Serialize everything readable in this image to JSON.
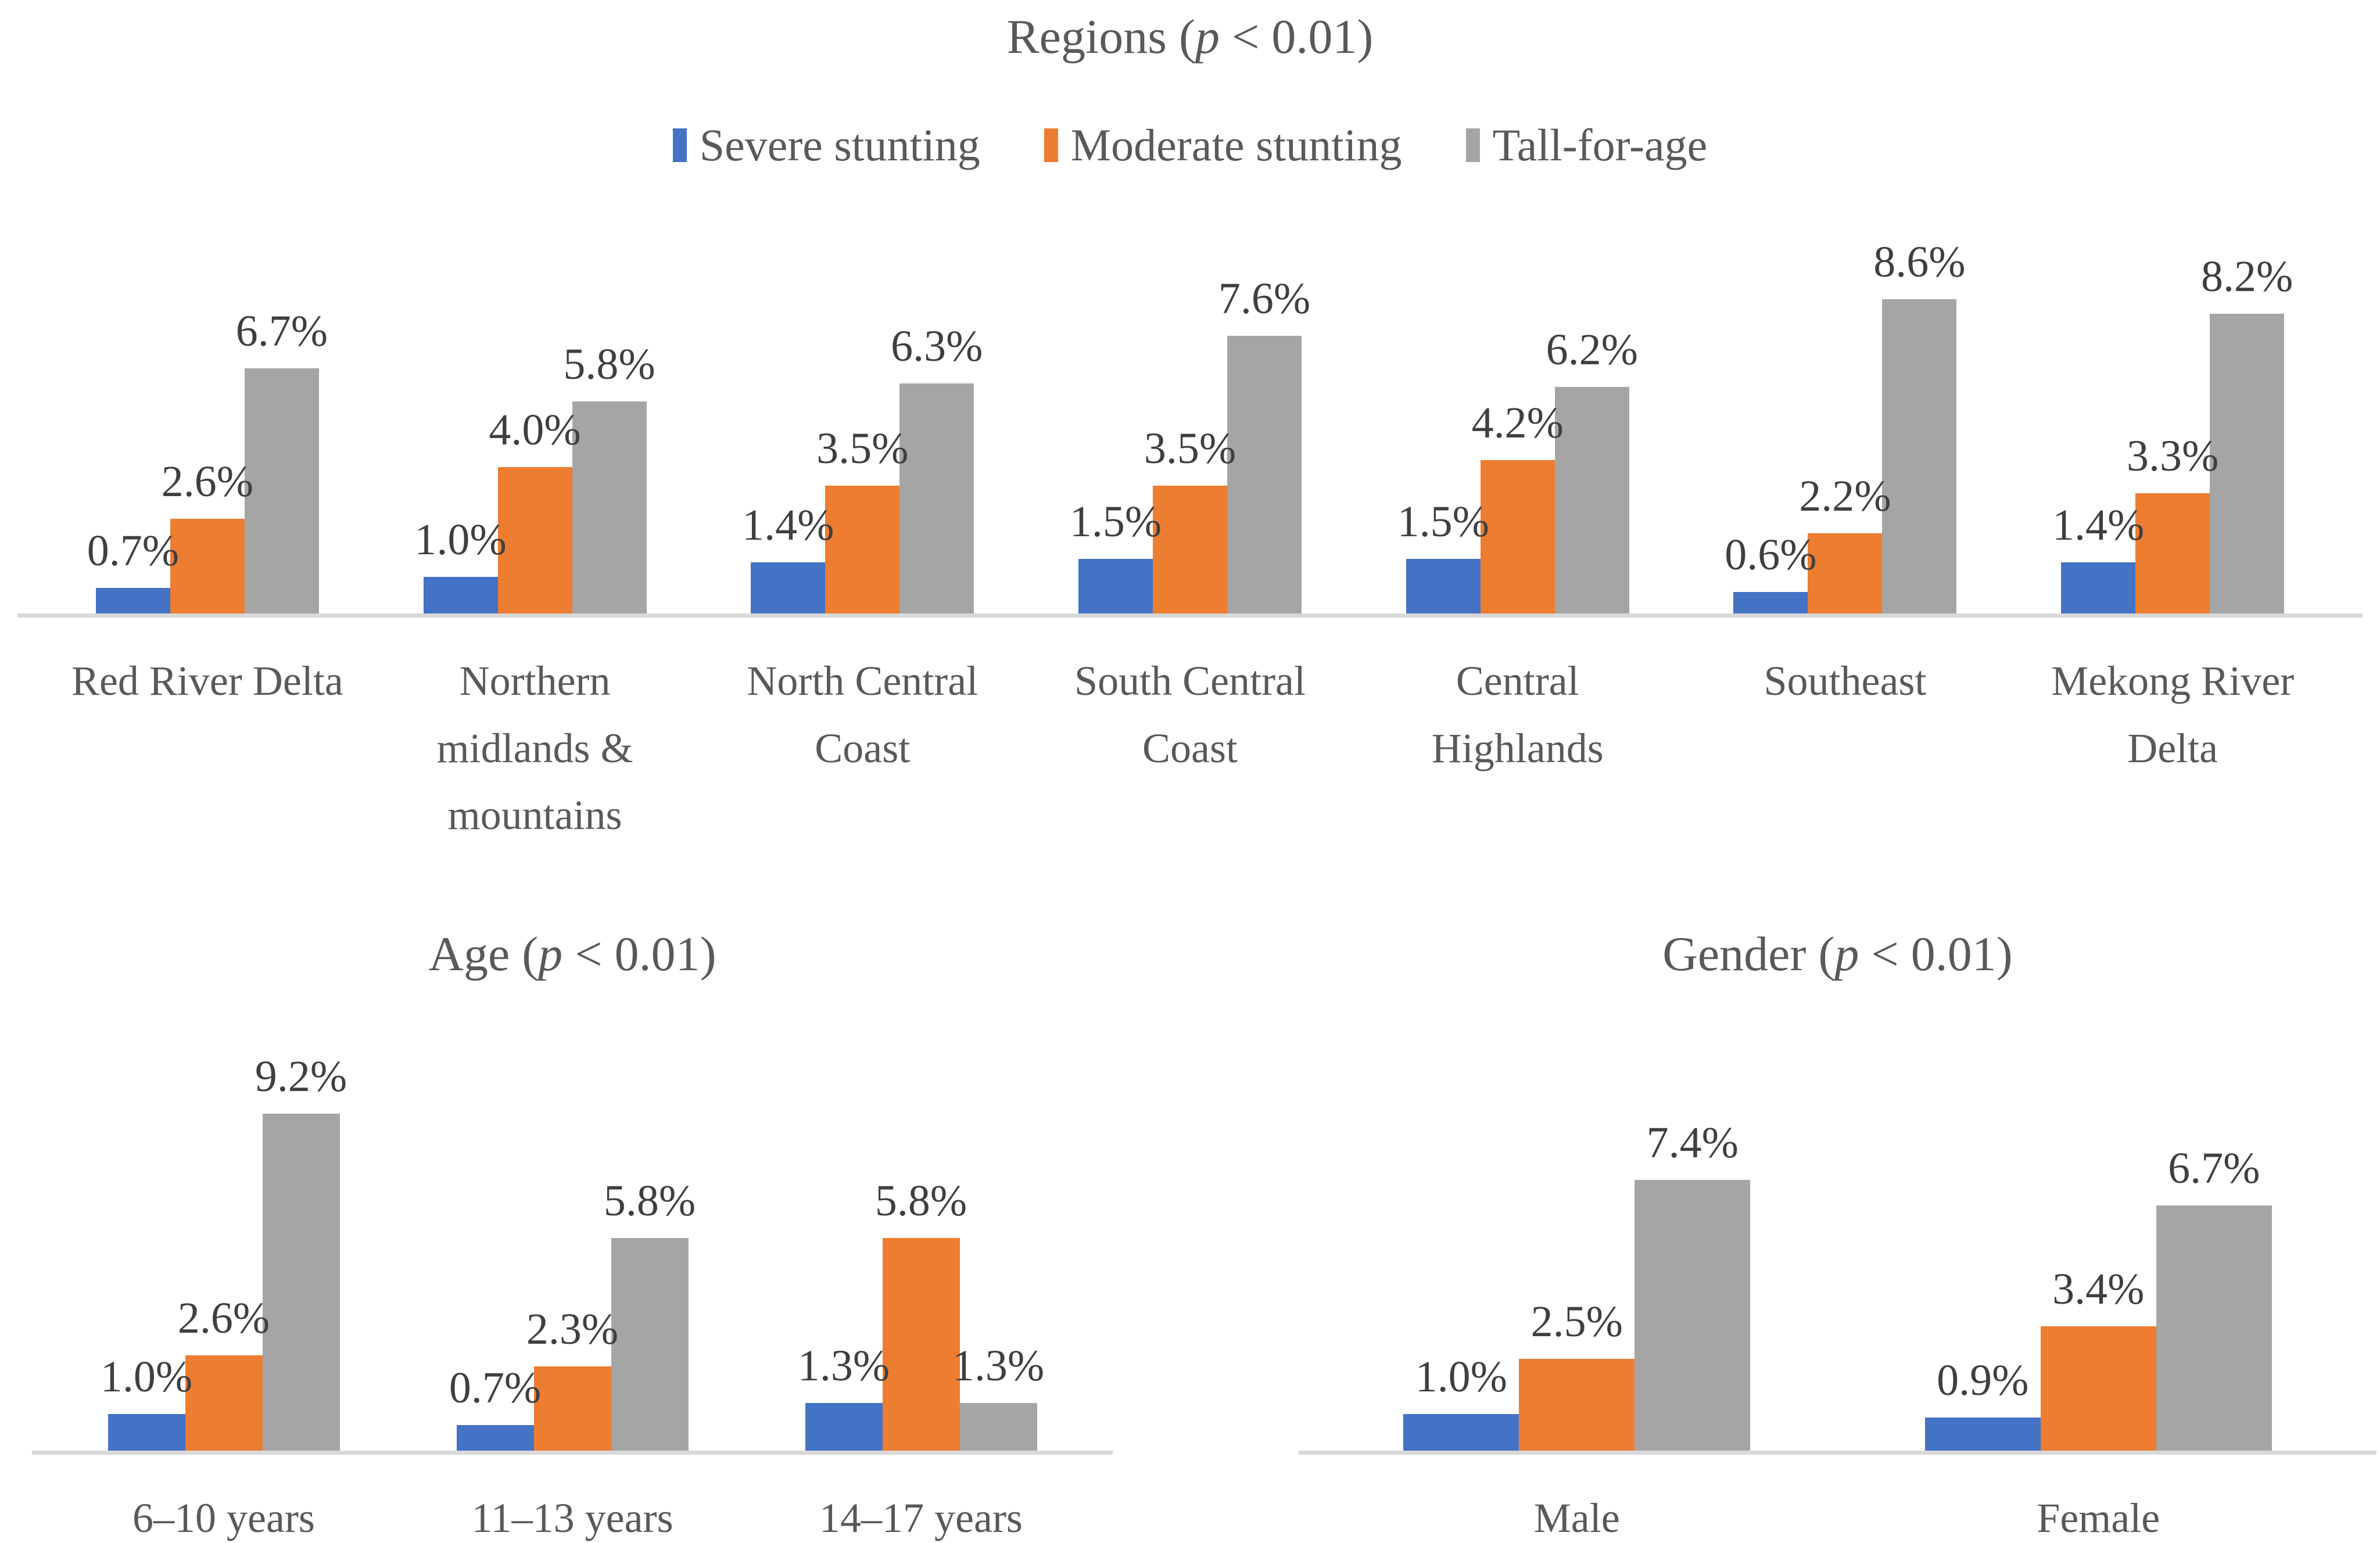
{
  "figure": {
    "background": "#FFFFFF",
    "title_text_color": "#595959",
    "data_label_color": "#3F3F3F",
    "axis_line_color": "#D9D9D9"
  },
  "legend": {
    "position": "top",
    "items": [
      {
        "label": "Severe stunting",
        "color": "#4472C4"
      },
      {
        "label": "Moderate stunting",
        "color": "#ED7D31"
      },
      {
        "label": "Tall-for-age",
        "color": "#A5A5A5"
      }
    ]
  },
  "chart_data": [
    {
      "type": "bar",
      "title": "Regions (p < 0.01)",
      "legend_position": "top",
      "grid": false,
      "ylim": [
        0,
        10
      ],
      "data_label_format": "one_decimal_percent",
      "categories": [
        "Red River Delta",
        "Northern midlands & mountains",
        "North Central Coast",
        "South Central Coast",
        "Central Highlands",
        "Southeast",
        "Mekong River Delta"
      ],
      "category_lines": [
        [
          "Red River Delta"
        ],
        [
          "Northern",
          "midlands &",
          "mountains"
        ],
        [
          "North Central",
          "Coast"
        ],
        [
          "South Central",
          "Coast"
        ],
        [
          "Central",
          "Highlands"
        ],
        [
          "Southeast"
        ],
        [
          "Mekong River",
          "Delta"
        ]
      ],
      "series": [
        {
          "name": "Severe stunting",
          "color": "#4472C4",
          "values": [
            0.7,
            1.0,
            1.4,
            1.5,
            1.5,
            0.6,
            1.4
          ]
        },
        {
          "name": "Moderate stunting",
          "color": "#ED7D31",
          "values": [
            2.6,
            4.0,
            3.5,
            3.5,
            4.2,
            2.2,
            3.3
          ]
        },
        {
          "name": "Tall-for-age",
          "color": "#A5A5A5",
          "values": [
            6.7,
            5.8,
            6.3,
            7.6,
            6.2,
            8.6,
            8.2
          ]
        }
      ]
    },
    {
      "type": "bar",
      "title": "Age (p < 0.01)",
      "legend_position": "none",
      "grid": false,
      "ylim": [
        0,
        10
      ],
      "data_label_format": "one_decimal_percent",
      "categories": [
        "6–10 years",
        "11–13 years",
        "14–17 years"
      ],
      "category_lines": [
        [
          "6–10 years"
        ],
        [
          "11–13 years"
        ],
        [
          "14–17 years"
        ]
      ],
      "series": [
        {
          "name": "Severe stunting",
          "color": "#4472C4",
          "values": [
            1.0,
            0.7,
            1.3
          ]
        },
        {
          "name": "Moderate stunting",
          "color": "#ED7D31",
          "values": [
            2.6,
            2.3,
            5.8
          ]
        },
        {
          "name": "Tall-for-age",
          "color": "#A5A5A5",
          "values": [
            9.2,
            5.8,
            1.3
          ]
        }
      ]
    },
    {
      "type": "bar",
      "title": "Gender (p < 0.01)",
      "legend_position": "none",
      "grid": false,
      "ylim": [
        0,
        10
      ],
      "data_label_format": "one_decimal_percent",
      "categories": [
        "Male",
        "Female"
      ],
      "category_lines": [
        [
          "Male"
        ],
        [
          "Female"
        ]
      ],
      "series": [
        {
          "name": "Severe stunting",
          "color": "#4472C4",
          "values": [
            1.0,
            0.9
          ]
        },
        {
          "name": "Moderate stunting",
          "color": "#ED7D31",
          "values": [
            2.5,
            3.4
          ]
        },
        {
          "name": "Tall-for-age",
          "color": "#A5A5A5",
          "values": [
            7.4,
            6.7
          ]
        }
      ]
    }
  ]
}
